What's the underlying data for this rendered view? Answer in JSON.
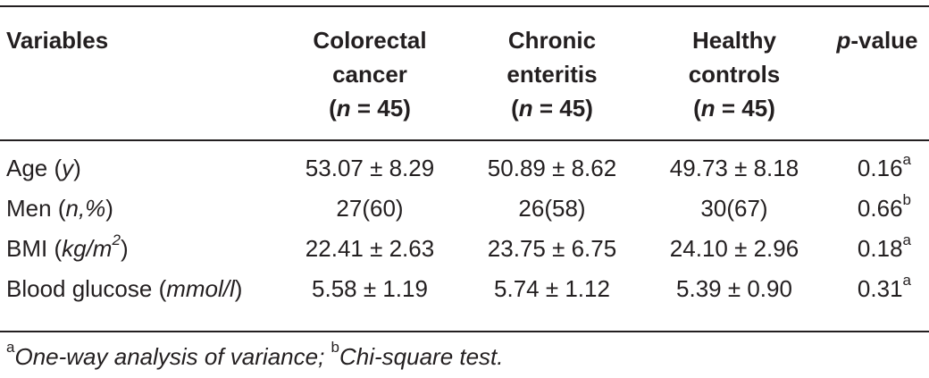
{
  "table": {
    "header": {
      "variables": "Variables",
      "groups": [
        {
          "line1": "Colorectal",
          "line2": "cancer",
          "n_label": "n",
          "n_rest": " = 45"
        },
        {
          "line1": "Chronic",
          "line2": "enteritis",
          "n_label": "n",
          "n_rest": " = 45"
        },
        {
          "line1": "Healthy",
          "line2": "controls",
          "n_label": "n",
          "n_rest": " = 45"
        }
      ],
      "p_italic": "p",
      "p_rest": "-value"
    },
    "rows": [
      {
        "label": "Age ",
        "unit": "y",
        "unit_sup": "",
        "suffix": "",
        "cells": [
          "53.07 ± 8.29",
          "50.89 ± 8.62",
          "49.73 ± 8.18"
        ],
        "p": "0.16",
        "p_sup": "a"
      },
      {
        "label": "Men ",
        "unit": "n,%",
        "unit_sup": "",
        "suffix": "",
        "cells": [
          "27(60)",
          "26(58)",
          "30(67)"
        ],
        "p": "0.66",
        "p_sup": "b"
      },
      {
        "label": "BMI ",
        "unit": "kg/m",
        "unit_sup": "2",
        "suffix": "",
        "cells": [
          "22.41 ± 2.63",
          "23.75 ± 6.75",
          "24.10 ± 2.96"
        ],
        "p": "0.18",
        "p_sup": "a"
      },
      {
        "label": "Blood glucose ",
        "unit": "mmol/l",
        "unit_sup": "",
        "suffix": "",
        "cells": [
          "5.58 ± 1.19",
          "5.74 ± 1.12",
          "5.39 ± 0.90"
        ],
        "p": "0.31",
        "p_sup": "a"
      }
    ]
  },
  "footnote": {
    "a_mark": "a",
    "a_text": "One-way analysis of variance; ",
    "b_mark": "b",
    "b_text": "Chi-square test."
  }
}
